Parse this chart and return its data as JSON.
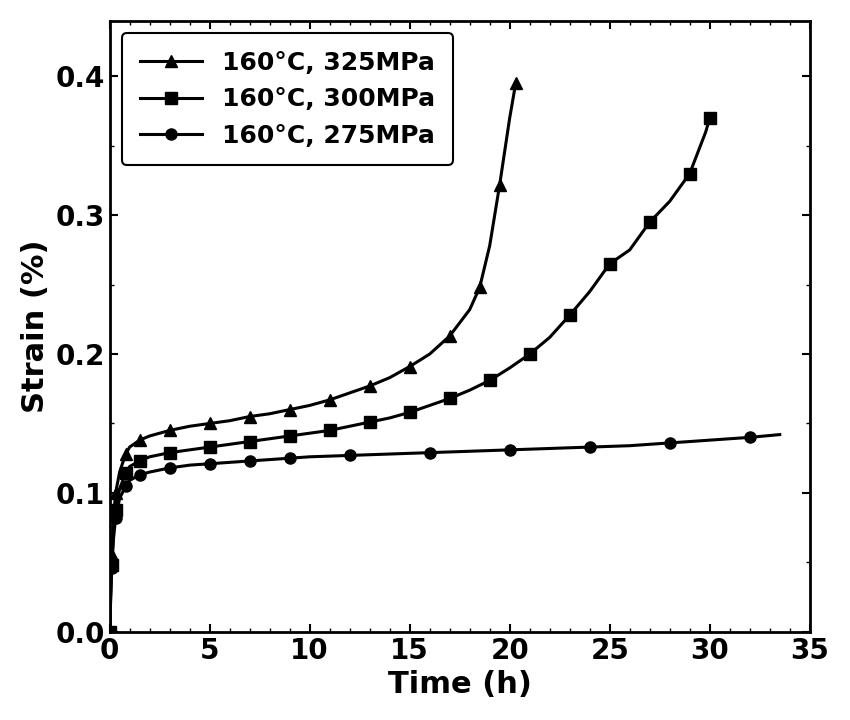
{
  "title": "",
  "xlabel": "Time (h)",
  "ylabel": "Strain (%)",
  "xlim": [
    0,
    35
  ],
  "ylim": [
    0.0,
    0.44
  ],
  "yticks": [
    0.0,
    0.1,
    0.2,
    0.3,
    0.4
  ],
  "xticks": [
    0,
    5,
    10,
    15,
    20,
    25,
    30,
    35
  ],
  "legend_labels": [
    "160°C, 325MPa",
    "160°C, 300MPa",
    "160°C, 275MPa"
  ],
  "line_color": "#000000",
  "background_color": "#ffffff",
  "series_325": {
    "t": [
      0,
      0.05,
      0.1,
      0.2,
      0.3,
      0.5,
      0.8,
      1.0,
      1.5,
      2.0,
      3.0,
      4.0,
      5.0,
      6.0,
      7.0,
      8.0,
      9.0,
      10.0,
      11.0,
      12.0,
      13.0,
      14.0,
      15.0,
      16.0,
      17.0,
      18.0,
      18.5,
      19.0,
      19.5,
      20.0,
      20.3
    ],
    "strain": [
      0.0,
      0.03,
      0.055,
      0.083,
      0.1,
      0.115,
      0.128,
      0.133,
      0.138,
      0.141,
      0.145,
      0.148,
      0.15,
      0.152,
      0.155,
      0.157,
      0.16,
      0.163,
      0.167,
      0.172,
      0.177,
      0.183,
      0.191,
      0.2,
      0.213,
      0.232,
      0.248,
      0.278,
      0.322,
      0.37,
      0.395
    ]
  },
  "series_300": {
    "t": [
      0,
      0.05,
      0.1,
      0.2,
      0.3,
      0.5,
      0.8,
      1.0,
      1.5,
      2.0,
      3.0,
      4.0,
      5.0,
      6.0,
      7.0,
      8.0,
      9.0,
      10.0,
      11.0,
      12.0,
      13.0,
      14.0,
      15.0,
      16.0,
      17.0,
      18.0,
      19.0,
      20.0,
      21.0,
      22.0,
      23.0,
      24.0,
      25.0,
      26.0,
      27.0,
      28.0,
      29.0,
      29.8,
      30.0
    ],
    "strain": [
      0.0,
      0.025,
      0.048,
      0.073,
      0.088,
      0.103,
      0.114,
      0.119,
      0.123,
      0.126,
      0.129,
      0.131,
      0.133,
      0.135,
      0.137,
      0.139,
      0.141,
      0.143,
      0.145,
      0.148,
      0.151,
      0.154,
      0.158,
      0.163,
      0.168,
      0.174,
      0.181,
      0.19,
      0.2,
      0.212,
      0.228,
      0.245,
      0.265,
      0.275,
      0.295,
      0.31,
      0.33,
      0.36,
      0.37
    ]
  },
  "series_275": {
    "t": [
      0,
      0.05,
      0.1,
      0.2,
      0.3,
      0.5,
      0.8,
      1.0,
      1.5,
      2.0,
      3.0,
      4.0,
      5.0,
      6.0,
      7.0,
      8.0,
      9.0,
      10.0,
      12.0,
      14.0,
      16.0,
      18.0,
      20.0,
      22.0,
      24.0,
      26.0,
      28.0,
      30.0,
      32.0,
      33.5
    ],
    "strain": [
      0.0,
      0.022,
      0.046,
      0.068,
      0.082,
      0.096,
      0.105,
      0.109,
      0.113,
      0.115,
      0.118,
      0.12,
      0.121,
      0.122,
      0.123,
      0.124,
      0.125,
      0.126,
      0.127,
      0.128,
      0.129,
      0.13,
      0.131,
      0.132,
      0.133,
      0.134,
      0.136,
      0.138,
      0.14,
      0.142
    ]
  },
  "marker_size": 8,
  "linewidth": 2.2,
  "font_size_labels": 22,
  "font_size_ticks": 20,
  "font_size_legend": 18
}
